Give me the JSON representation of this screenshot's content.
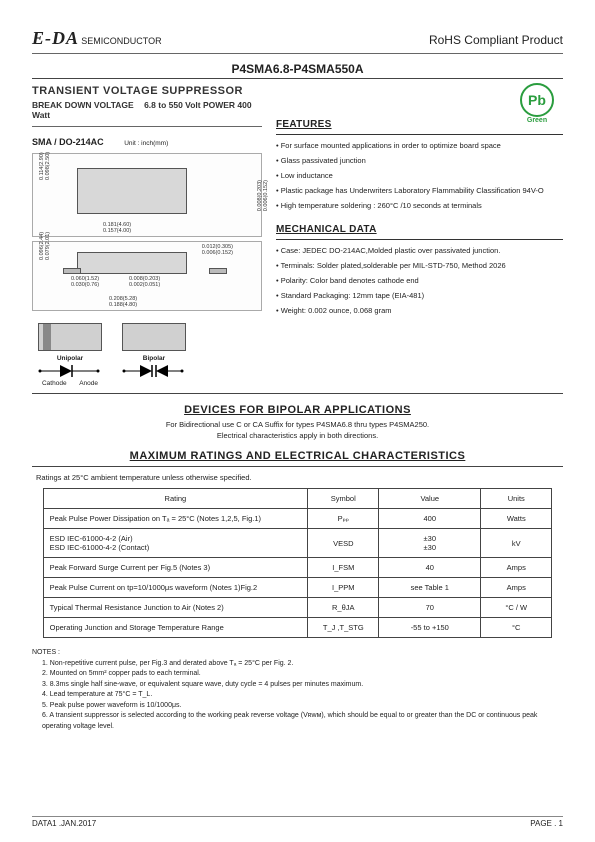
{
  "header": {
    "brand": "E-DA",
    "brand_sub": "SEMICONDUCTOR",
    "rohs": "RoHS Compliant Product"
  },
  "part_number": "P4SMA6.8-P4SMA550A",
  "left": {
    "title": "TRANSIENT  VOLTAGE  SUPPRESSOR",
    "bdv_label": "BREAK DOWN VOLTAGE",
    "bdv_value": "6.8  to  550 Volt   POWER 400 Watt",
    "package": "SMA / DO-214AC",
    "unit": "Unit : inch(mm)",
    "dims_top": {
      "w1": "0.181(4.60)",
      "w2": "0.157(4.00)",
      "h1": "0.114(2.90)",
      "h2": "0.098(2.50)",
      "l1": "0.008(0.203)",
      "l2": "0.006(0.152)"
    },
    "dims_side": {
      "t1": "0.012(0.305)",
      "t2": "0.006(0.152)",
      "h1": "0.096(2.44)",
      "h2": "0.079(2.01)",
      "p1": "0.060(1.52)",
      "p2": "0.030(0.76)",
      "g1": "0.008(0.203)",
      "g2": "0.002(0.051)",
      "L1": "0.208(5.28)",
      "L2": "0.188(4.80)"
    },
    "unipolar": "Unipolar",
    "bipolar": "Bipolar",
    "cathode": "Cathode",
    "anode": "Anode"
  },
  "pb": {
    "text": "Pb",
    "green": "Green"
  },
  "features": {
    "head": "FEATURES",
    "items": [
      "For surface mounted applications in order to optimize board space",
      "Glass passivated junction",
      "Low inductance",
      "Plastic package has Underwriters Laboratory Flammability Classification 94V-O",
      "High temperature soldering : 260°C /10 seconds at terminals"
    ]
  },
  "mech": {
    "head": "MECHANICAL DATA",
    "items": [
      "Case: JEDEC DO-214AC,Molded plastic over passivated junction.",
      "Terminals: Solder plated,solderable per MIL-STD-750, Method 2026",
      "Polarity: Color band denotes cathode end",
      "Standard Packaging: 12mm tape (EIA-481)",
      "Weight: 0.002 ounce, 0.068 gram"
    ]
  },
  "bipolar_sec": {
    "title": "DEVICES  FOR  BIPOLAR  APPLICATIONS",
    "line1": "For Bidirectional use C or CA Suffix for types P4SMA6.8 thru types P4SMA250.",
    "line2": "Electrical characteristics apply in both directions."
  },
  "max_title": "MAXIMUM  RATINGS  AND  ELECTRICAL  CHARACTERISTICS",
  "ratings_note": "Ratings at 25°C ambient temperature unless otherwise specified.",
  "table": {
    "headers": [
      "Rating",
      "Symbol",
      "Value",
      "Units"
    ],
    "rows": [
      [
        "Peak Pulse Power Dissipation on Tₐ = 25°C (Notes 1,2,5, Fig.1)",
        "Pₚₚ",
        "400",
        "Watts"
      ],
      [
        "ESD IEC-61000-4-2 (Air)\nESD IEC-61000-4-2 (Contact)",
        "VESD",
        "±30\n±30",
        "kV"
      ],
      [
        "Peak Forward Surge Current per Fig.5 (Notes 3)",
        "I_FSM",
        "40",
        "Amps"
      ],
      [
        "Peak Pulse Current on tp=10/1000μs waveform (Notes 1)Fig.2",
        "I_PPM",
        "see Table 1",
        "Amps"
      ],
      [
        "Typical Thermal Resistance Junction to Air (Notes 2)",
        "R_θJA",
        "70",
        "°C / W"
      ],
      [
        "Operating Junction and Storage Temperature Range",
        "T_J ,T_STG",
        "-55 to +150",
        "°C"
      ]
    ]
  },
  "notes": {
    "head": "NOTES :",
    "items": [
      "1. Non-repetitive current pulse, per Fig.3 and derated above Tₐ = 25°C per Fig. 2.",
      "2. Mounted on 5mm² copper pads to each terminal.",
      "3. 8.3ms single half sine-wave, or equivalent square wave, duty cycle = 4 pulses per minutes maximum.",
      "4. Lead temperature at 75°C = T_L.",
      "5. Peak pulse power waveform is 10/1000μs.",
      "6. A transient suppressor is selected according to the working peak reverse voltage (Vʀᴡᴍ), which should be equal to or greater than the DC or continuous peak operating voltage level."
    ]
  },
  "footer": {
    "left": "DATA1 .JAN.2017",
    "right": "PAGE .  1"
  },
  "colors": {
    "green": "#2a9d3e",
    "chip": "#d8d8d8",
    "border": "#444"
  }
}
